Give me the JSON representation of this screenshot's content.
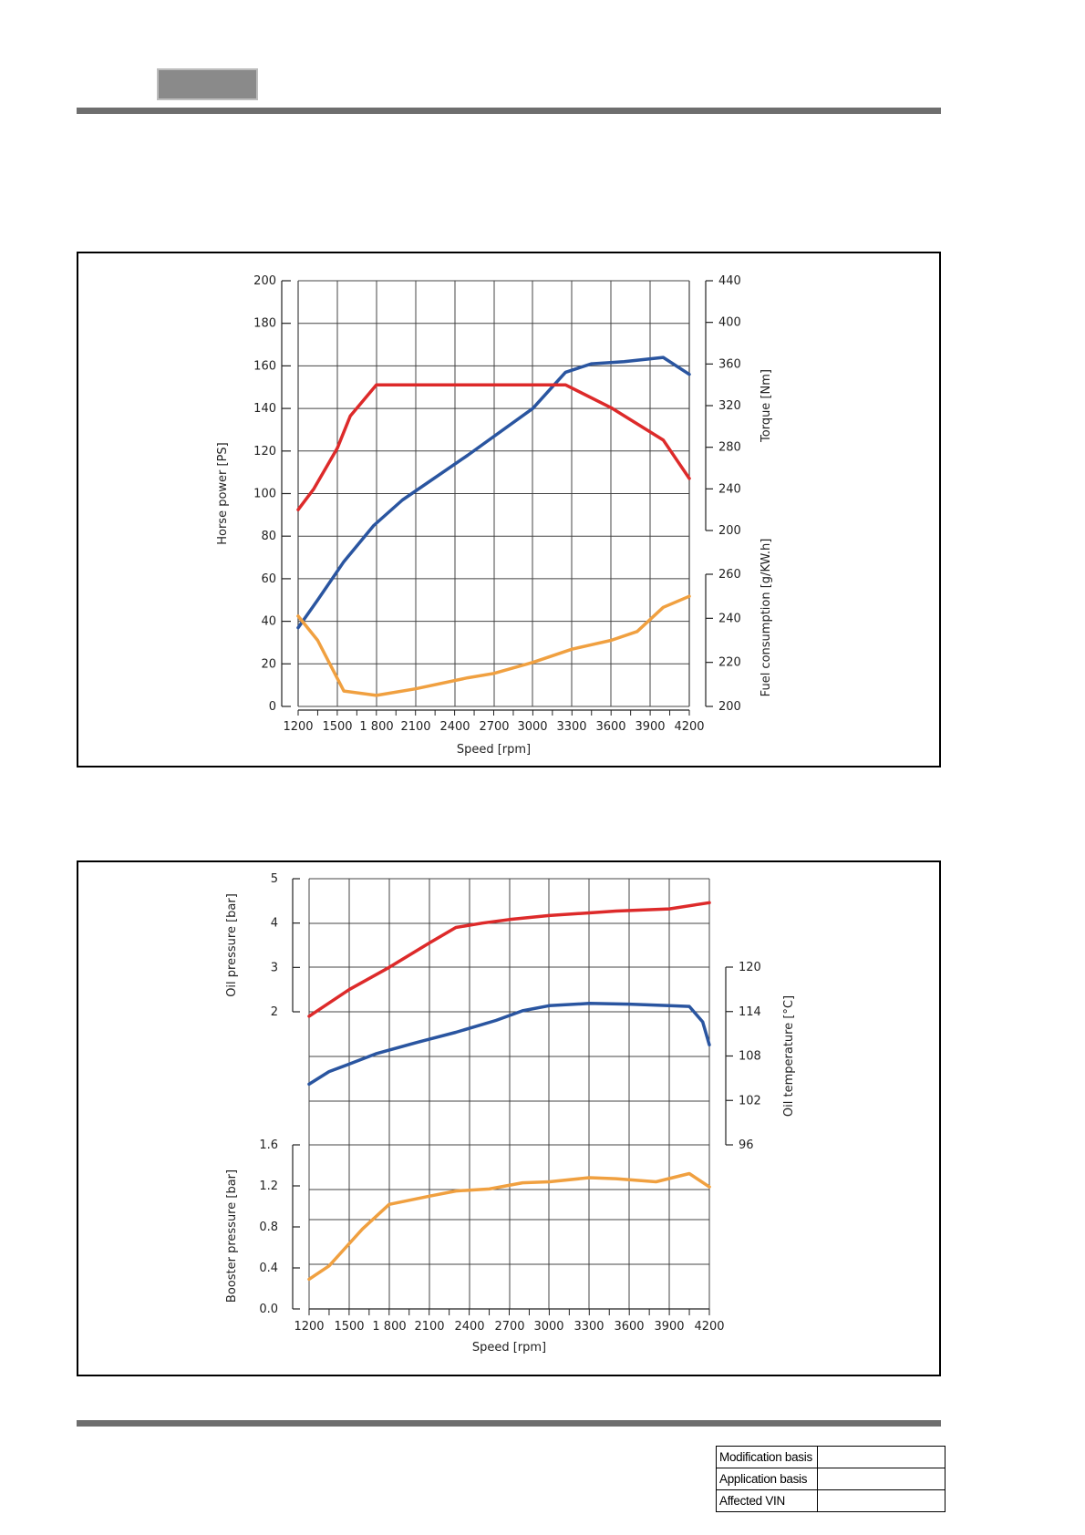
{
  "header": {
    "tab_label": ""
  },
  "footer": {
    "table": [
      {
        "label": "Modification basis",
        "value": ""
      },
      {
        "label": "Application basis",
        "value": ""
      },
      {
        "label": "Affected VIN",
        "value": ""
      }
    ]
  },
  "colors": {
    "red": "#dd2a2a",
    "blue": "#2a55a0",
    "orange": "#f0a040",
    "grid": "#555555"
  },
  "chart_data": [
    {
      "type": "line",
      "x_ticks": [
        "1200",
        "1500",
        "1 800",
        "2100",
        "2400",
        "2700",
        "3000",
        "3300",
        "3600",
        "3900",
        "4200"
      ],
      "xlabel": "Speed [rpm]",
      "x_range": [
        1200,
        4200
      ],
      "axes": [
        {
          "id": "hp",
          "side": "left",
          "label": "Horse power [PS]",
          "range": [
            0,
            200
          ],
          "ticks": [
            "0",
            "20",
            "40",
            "60",
            "80",
            "100",
            "120",
            "140",
            "160",
            "180",
            "200"
          ]
        },
        {
          "id": "torque",
          "side": "right",
          "label": "Torque [Nm]",
          "range": [
            200,
            440
          ],
          "ticks": [
            "200",
            "240",
            "280",
            "320",
            "360",
            "400",
            "440"
          ]
        },
        {
          "id": "fuel",
          "side": "right",
          "label": "Fuel consumption [g/KW.h]",
          "range": [
            200,
            260
          ],
          "ticks": [
            "200",
            "220",
            "240",
            "260"
          ]
        }
      ],
      "series": [
        {
          "axis": "hp",
          "color": "blue",
          "points": [
            [
              1200,
              37
            ],
            [
              1350,
              50
            ],
            [
              1550,
              68
            ],
            [
              1780,
              85
            ],
            [
              2000,
              97
            ],
            [
              2500,
              118
            ],
            [
              3000,
              140
            ],
            [
              3250,
              157
            ],
            [
              3450,
              161
            ],
            [
              3700,
              162
            ],
            [
              4000,
              164
            ],
            [
              4200,
              156
            ]
          ]
        },
        {
          "axis": "torque",
          "color": "red",
          "points": [
            [
              1200,
              220
            ],
            [
              1320,
              240
            ],
            [
              1500,
              279
            ],
            [
              1600,
              310
            ],
            [
              1800,
              340
            ],
            [
              2500,
              340
            ],
            [
              3000,
              340
            ],
            [
              3250,
              340
            ],
            [
              3600,
              318
            ],
            [
              4000,
              287
            ],
            [
              4200,
              250
            ]
          ]
        },
        {
          "axis": "fuel",
          "color": "orange",
          "points": [
            [
              1200,
              241
            ],
            [
              1350,
              230
            ],
            [
              1550,
              207
            ],
            [
              1800,
              205
            ],
            [
              2100,
              208
            ],
            [
              2500,
              213
            ],
            [
              2700,
              215
            ],
            [
              3000,
              220
            ],
            [
              3300,
              226
            ],
            [
              3450,
              228
            ],
            [
              3600,
              230
            ],
            [
              3800,
              234
            ],
            [
              4000,
              245
            ],
            [
              4200,
              250
            ]
          ]
        }
      ]
    },
    {
      "type": "line",
      "x_ticks": [
        "1200",
        "1500",
        "1 800",
        "2100",
        "2400",
        "2700",
        "3000",
        "3300",
        "3600",
        "3900",
        "4200"
      ],
      "xlabel": "Speed [rpm]",
      "x_range": [
        1200,
        4200
      ],
      "axes": [
        {
          "id": "oilp",
          "side": "left",
          "label": "Oil pressure [bar]",
          "range": [
            2,
            5
          ],
          "ticks": [
            "2",
            "3",
            "4",
            "5"
          ]
        },
        {
          "id": "oilt",
          "side": "right",
          "label": "Oil temperature [°C]",
          "ticks": [
            "96",
            "102",
            "108",
            "114",
            "120"
          ]
        },
        {
          "id": "boost",
          "side": "left",
          "label": "Booster pressure [bar]",
          "range": [
            0,
            1.6
          ],
          "ticks": [
            "0.0",
            "0.4",
            "0.8",
            "1.2",
            "1.6"
          ]
        }
      ],
      "series": [
        {
          "axis": "oilp",
          "color": "red",
          "points": [
            [
              1200,
              1.9
            ],
            [
              1500,
              2.5
            ],
            [
              1800,
              3.0
            ],
            [
              2100,
              3.55
            ],
            [
              2300,
              3.9
            ],
            [
              2500,
              4.0
            ],
            [
              2700,
              4.08
            ],
            [
              3000,
              4.17
            ],
            [
              3300,
              4.23
            ],
            [
              3500,
              4.27
            ],
            [
              3900,
              4.32
            ],
            [
              4200,
              4.46
            ]
          ]
        },
        {
          "axis": "oilt",
          "color": "blue",
          "points": [
            [
              1200,
              104.2
            ],
            [
              1350,
              105.9
            ],
            [
              1500,
              106.9
            ],
            [
              1700,
              108.3
            ],
            [
              2000,
              109.8
            ],
            [
              2300,
              111.2
            ],
            [
              2600,
              112.8
            ],
            [
              2800,
              114.1
            ],
            [
              3000,
              114.8
            ],
            [
              3300,
              115.1
            ],
            [
              3600,
              115.0
            ],
            [
              3900,
              114.8
            ],
            [
              4050,
              114.7
            ],
            [
              4150,
              112.6
            ],
            [
              4200,
              109.5
            ]
          ]
        },
        {
          "axis": "boost",
          "color": "orange",
          "points": [
            [
              1200,
              0.29
            ],
            [
              1350,
              0.42
            ],
            [
              1600,
              0.78
            ],
            [
              1800,
              1.02
            ],
            [
              2100,
              1.1
            ],
            [
              2300,
              1.15
            ],
            [
              2550,
              1.17
            ],
            [
              2800,
              1.23
            ],
            [
              3000,
              1.24
            ],
            [
              3300,
              1.28
            ],
            [
              3500,
              1.27
            ],
            [
              3800,
              1.24
            ],
            [
              4050,
              1.32
            ],
            [
              4200,
              1.19
            ]
          ]
        }
      ]
    }
  ]
}
